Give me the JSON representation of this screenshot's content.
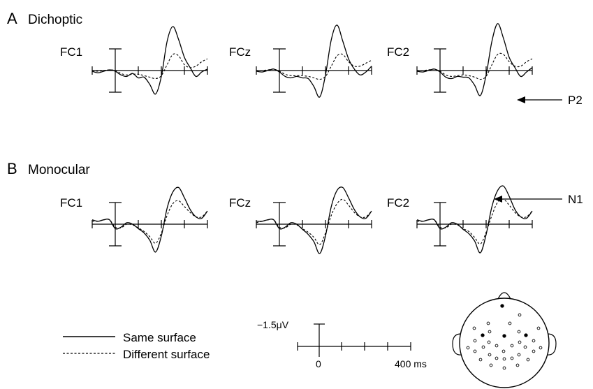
{
  "chart_data": {
    "type": "line",
    "x_unit": "ms",
    "y_unit": "μV",
    "x_range": [
      -100,
      400
    ],
    "panels": [
      {
        "letter": "A",
        "title": "Dichoptic",
        "channels": [
          {
            "label": "FC1",
            "series": [
              {
                "name": "Same surface",
                "x": [
                  -100,
                  -75,
                  -50,
                  -25,
                  0,
                  25,
                  50,
                  75,
                  100,
                  125,
                  150,
                  175,
                  200,
                  225,
                  250,
                  275,
                  300,
                  325,
                  350,
                  375,
                  400
                ],
                "y": [
                  0.05,
                  0.15,
                  0.05,
                  -0.05,
                  0.05,
                  0.3,
                  0.4,
                  0.2,
                  0.5,
                  0.45,
                  0.95,
                  1.6,
                  0.4,
                  -2.0,
                  -3.0,
                  -2.1,
                  -0.9,
                  -0.2,
                  0.4,
                  0.1,
                  -0.1
                ]
              },
              {
                "name": "Different surface",
                "x": [
                  -100,
                  -75,
                  -50,
                  -25,
                  0,
                  25,
                  50,
                  75,
                  100,
                  125,
                  150,
                  175,
                  200,
                  225,
                  250,
                  275,
                  300,
                  325,
                  350,
                  375,
                  400
                ],
                "y": [
                  0.0,
                  0.05,
                  0.0,
                  -0.05,
                  0.0,
                  0.2,
                  0.3,
                  0.25,
                  0.25,
                  0.35,
                  0.45,
                  0.55,
                  0.35,
                  -0.4,
                  -1.1,
                  -1.0,
                  -0.4,
                  -0.2,
                  -0.3,
                  -0.6,
                  -0.8
                ]
              }
            ]
          },
          {
            "label": "FCz",
            "series": [
              {
                "name": "Same surface",
                "x": [
                  -100,
                  -75,
                  -50,
                  -25,
                  0,
                  25,
                  50,
                  75,
                  100,
                  125,
                  150,
                  175,
                  200,
                  225,
                  250,
                  275,
                  300,
                  325,
                  350,
                  375,
                  400
                ],
                "y": [
                  0.05,
                  0.1,
                  0.0,
                  -0.1,
                  0.1,
                  0.4,
                  0.5,
                  0.4,
                  0.5,
                  0.55,
                  1.1,
                  1.8,
                  0.3,
                  -2.1,
                  -3.1,
                  -2.0,
                  -0.8,
                  -0.1,
                  0.3,
                  0.1,
                  -0.3
                ]
              },
              {
                "name": "Different surface",
                "x": [
                  -100,
                  -75,
                  -50,
                  -25,
                  0,
                  25,
                  50,
                  75,
                  100,
                  125,
                  150,
                  175,
                  200,
                  225,
                  250,
                  275,
                  300,
                  325,
                  350,
                  375,
                  400
                ],
                "y": [
                  0.0,
                  0.0,
                  -0.05,
                  -0.1,
                  0.05,
                  0.25,
                  0.35,
                  0.35,
                  0.35,
                  0.4,
                  0.5,
                  0.6,
                  0.4,
                  -0.3,
                  -1.0,
                  -1.1,
                  -0.6,
                  -0.3,
                  -0.3,
                  -0.5,
                  -0.7
                ]
              }
            ]
          },
          {
            "label": "FC2",
            "series": [
              {
                "name": "Same surface",
                "x": [
                  -100,
                  -75,
                  -50,
                  -25,
                  0,
                  25,
                  50,
                  75,
                  100,
                  125,
                  150,
                  175,
                  200,
                  225,
                  250,
                  275,
                  300,
                  325,
                  350,
                  375,
                  400
                ],
                "y": [
                  0.05,
                  0.1,
                  0.0,
                  -0.1,
                  0.1,
                  0.45,
                  0.55,
                  0.4,
                  0.45,
                  0.5,
                  1.0,
                  1.7,
                  0.3,
                  -2.0,
                  -3.2,
                  -2.2,
                  -0.9,
                  -0.2,
                  0.4,
                  0.1,
                  -0.2
                ]
              },
              {
                "name": "Different surface",
                "x": [
                  -100,
                  -75,
                  -50,
                  -25,
                  0,
                  25,
                  50,
                  75,
                  100,
                  125,
                  150,
                  175,
                  200,
                  225,
                  250,
                  275,
                  300,
                  325,
                  350,
                  375,
                  400
                ],
                "y": [
                  0.0,
                  0.0,
                  -0.05,
                  -0.1,
                  0.05,
                  0.3,
                  0.4,
                  0.35,
                  0.3,
                  0.35,
                  0.45,
                  0.6,
                  0.4,
                  -0.4,
                  -1.1,
                  -1.1,
                  -0.6,
                  -0.3,
                  -0.3,
                  -0.6,
                  -0.8
                ]
              }
            ]
          }
        ]
      },
      {
        "letter": "B",
        "title": "Monocular",
        "channels": [
          {
            "label": "FC1",
            "series": [
              {
                "name": "Same surface",
                "x": [
                  -100,
                  -75,
                  -50,
                  -25,
                  0,
                  25,
                  50,
                  75,
                  100,
                  125,
                  150,
                  175,
                  200,
                  225,
                  250,
                  275,
                  300,
                  325,
                  350,
                  375,
                  400
                ],
                "y": [
                  -0.3,
                  -0.2,
                  -0.3,
                  -0.3,
                  0.3,
                  0.2,
                  -0.1,
                  0.0,
                  0.3,
                  0.6,
                  1.1,
                  1.9,
                  0.8,
                  -1.1,
                  -2.2,
                  -2.5,
                  -1.8,
                  -1.0,
                  -0.5,
                  -0.4,
                  -0.9
                ]
              },
              {
                "name": "Different surface",
                "x": [
                  -100,
                  -75,
                  -50,
                  -25,
                  0,
                  25,
                  50,
                  75,
                  100,
                  125,
                  150,
                  175,
                  200,
                  225,
                  250,
                  275,
                  300,
                  325,
                  350,
                  375,
                  400
                ],
                "y": [
                  -0.2,
                  -0.2,
                  -0.3,
                  -0.3,
                  0.2,
                  0.25,
                  0.0,
                  0.05,
                  0.25,
                  0.5,
                  0.85,
                  1.3,
                  0.6,
                  -0.6,
                  -1.4,
                  -1.6,
                  -1.2,
                  -0.8,
                  -0.5,
                  -0.5,
                  -0.9
                ]
              }
            ]
          },
          {
            "label": "FCz",
            "series": [
              {
                "name": "Same surface",
                "x": [
                  -100,
                  -75,
                  -50,
                  -25,
                  0,
                  25,
                  50,
                  75,
                  100,
                  125,
                  150,
                  175,
                  200,
                  225,
                  250,
                  275,
                  300,
                  325,
                  350,
                  375,
                  400
                ],
                "y": [
                  -0.2,
                  -0.2,
                  -0.3,
                  -0.3,
                  0.3,
                  0.2,
                  -0.1,
                  0.0,
                  0.35,
                  0.7,
                  1.2,
                  2.0,
                  0.8,
                  -1.2,
                  -2.3,
                  -2.5,
                  -1.8,
                  -1.0,
                  -0.5,
                  -0.4,
                  -0.9
                ]
              },
              {
                "name": "Different surface",
                "x": [
                  -100,
                  -75,
                  -50,
                  -25,
                  0,
                  25,
                  50,
                  75,
                  100,
                  125,
                  150,
                  175,
                  200,
                  225,
                  250,
                  275,
                  300,
                  325,
                  350,
                  375,
                  400
                ],
                "y": [
                  -0.1,
                  -0.2,
                  -0.3,
                  -0.3,
                  0.2,
                  0.25,
                  0.0,
                  0.05,
                  0.3,
                  0.55,
                  0.9,
                  1.4,
                  0.6,
                  -0.6,
                  -1.4,
                  -1.7,
                  -1.3,
                  -0.8,
                  -0.5,
                  -0.5,
                  -0.9
                ]
              }
            ]
          },
          {
            "label": "FC2",
            "series": [
              {
                "name": "Same surface",
                "x": [
                  -100,
                  -75,
                  -50,
                  -25,
                  0,
                  25,
                  50,
                  75,
                  100,
                  125,
                  150,
                  175,
                  200,
                  225,
                  250,
                  275,
                  300,
                  325,
                  350,
                  375,
                  400
                ],
                "y": [
                  -0.3,
                  -0.2,
                  -0.3,
                  -0.3,
                  0.3,
                  0.2,
                  -0.1,
                  0.0,
                  0.35,
                  0.65,
                  1.15,
                  1.95,
                  0.7,
                  -1.2,
                  -2.3,
                  -2.6,
                  -1.9,
                  -1.0,
                  -0.5,
                  -0.4,
                  -0.9
                ]
              },
              {
                "name": "Different surface",
                "x": [
                  -100,
                  -75,
                  -50,
                  -25,
                  0,
                  25,
                  50,
                  75,
                  100,
                  125,
                  150,
                  175,
                  200,
                  225,
                  250,
                  275,
                  300,
                  325,
                  350,
                  375,
                  400
                ],
                "y": [
                  -0.2,
                  -0.2,
                  -0.3,
                  -0.3,
                  0.2,
                  0.25,
                  0.0,
                  0.05,
                  0.3,
                  0.5,
                  0.9,
                  1.35,
                  0.55,
                  -0.6,
                  -1.5,
                  -1.7,
                  -1.3,
                  -0.8,
                  -0.5,
                  -0.5,
                  -0.9
                ]
              }
            ]
          }
        ]
      }
    ],
    "annotations": [
      {
        "label": "P2",
        "panel": 0,
        "channel": 2,
        "x": 250
      },
      {
        "label": "N1",
        "panel": 1,
        "channel": 2,
        "x": 175
      }
    ],
    "legend": {
      "placement": "bottom-left",
      "entries": [
        {
          "label": "Same surface",
          "line": "solid"
        },
        {
          "label": "Different surface",
          "line": "dashed"
        }
      ]
    },
    "scale_bar": {
      "amplitude_label": "−1.5μV",
      "time_start_label": "0",
      "time_end_label": "400 ms",
      "amplitude_uv": -1.5,
      "time_ms": 400
    },
    "polarity_note": "negative up"
  },
  "head_map": {
    "highlighted_electrodes": [
      "FC1",
      "FCz",
      "FC2"
    ]
  },
  "colors": {
    "line": "#000000",
    "background": "#ffffff"
  }
}
